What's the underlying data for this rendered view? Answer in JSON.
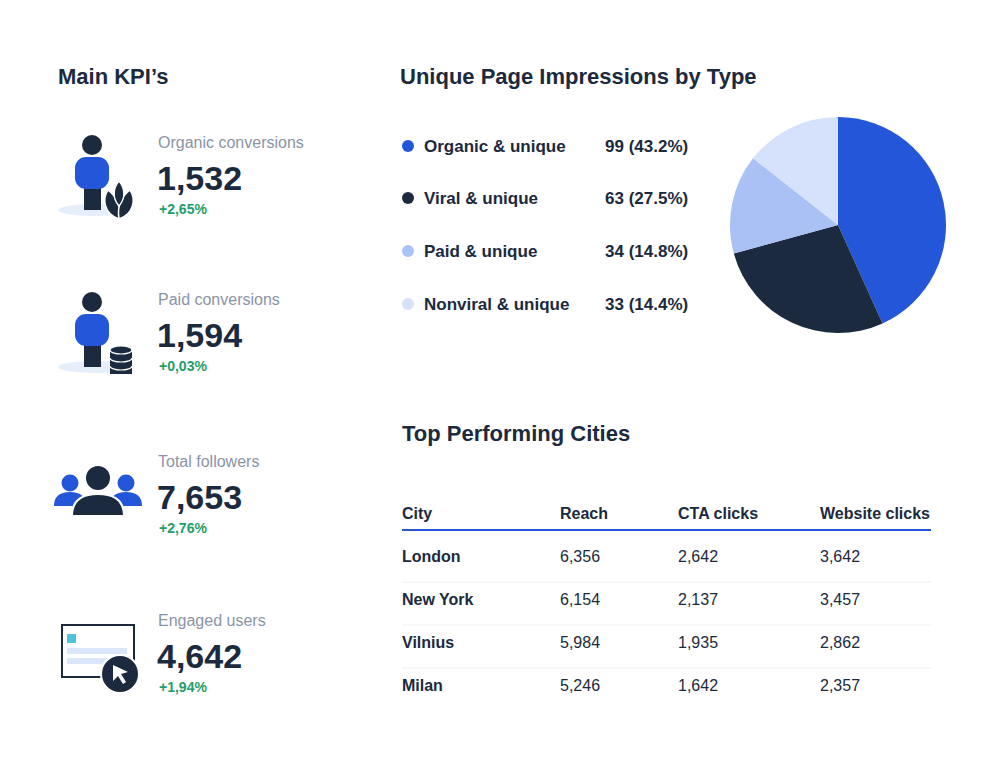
{
  "kpis": {
    "title": "Main KPI’s",
    "items": [
      {
        "label": "Organic conversions",
        "value": "1,532",
        "change": "+2,65%"
      },
      {
        "label": "Paid conversions",
        "value": "1,594",
        "change": "+0,03%"
      },
      {
        "label": "Total followers",
        "value": "7,653",
        "change": "+2,76%"
      },
      {
        "label": "Engaged users",
        "value": "4,642",
        "change": "+1,94%"
      }
    ]
  },
  "chart_data": {
    "type": "pie",
    "title": "Unique Page Impressions by Type",
    "categories": [
      "Organic & unique",
      "Viral & unique",
      "Paid & unique",
      "Nonviral & unique"
    ],
    "values": [
      99,
      63,
      34,
      33
    ],
    "value_labels": [
      "99 (43.2%)",
      "63 (27.5%)",
      "34 (14.8%)",
      "33 (14.4%)"
    ],
    "colors": [
      "#2356d9",
      "#1b2a3e",
      "#a9c1f5",
      "#d6e2fb"
    ],
    "legend": "left"
  },
  "table": {
    "title": "Top Performing Cities",
    "columns": [
      "City",
      "Reach",
      "CTA clicks",
      "Website clicks"
    ],
    "rows": [
      [
        "London",
        "6,356",
        "2,642",
        "3,642"
      ],
      [
        "New York",
        "6,154",
        "2,137",
        "3,457"
      ],
      [
        "Vilnius",
        "5,984",
        "1,935",
        "2,862"
      ],
      [
        "Milan",
        "5,246",
        "1,642",
        "2,357"
      ]
    ]
  }
}
